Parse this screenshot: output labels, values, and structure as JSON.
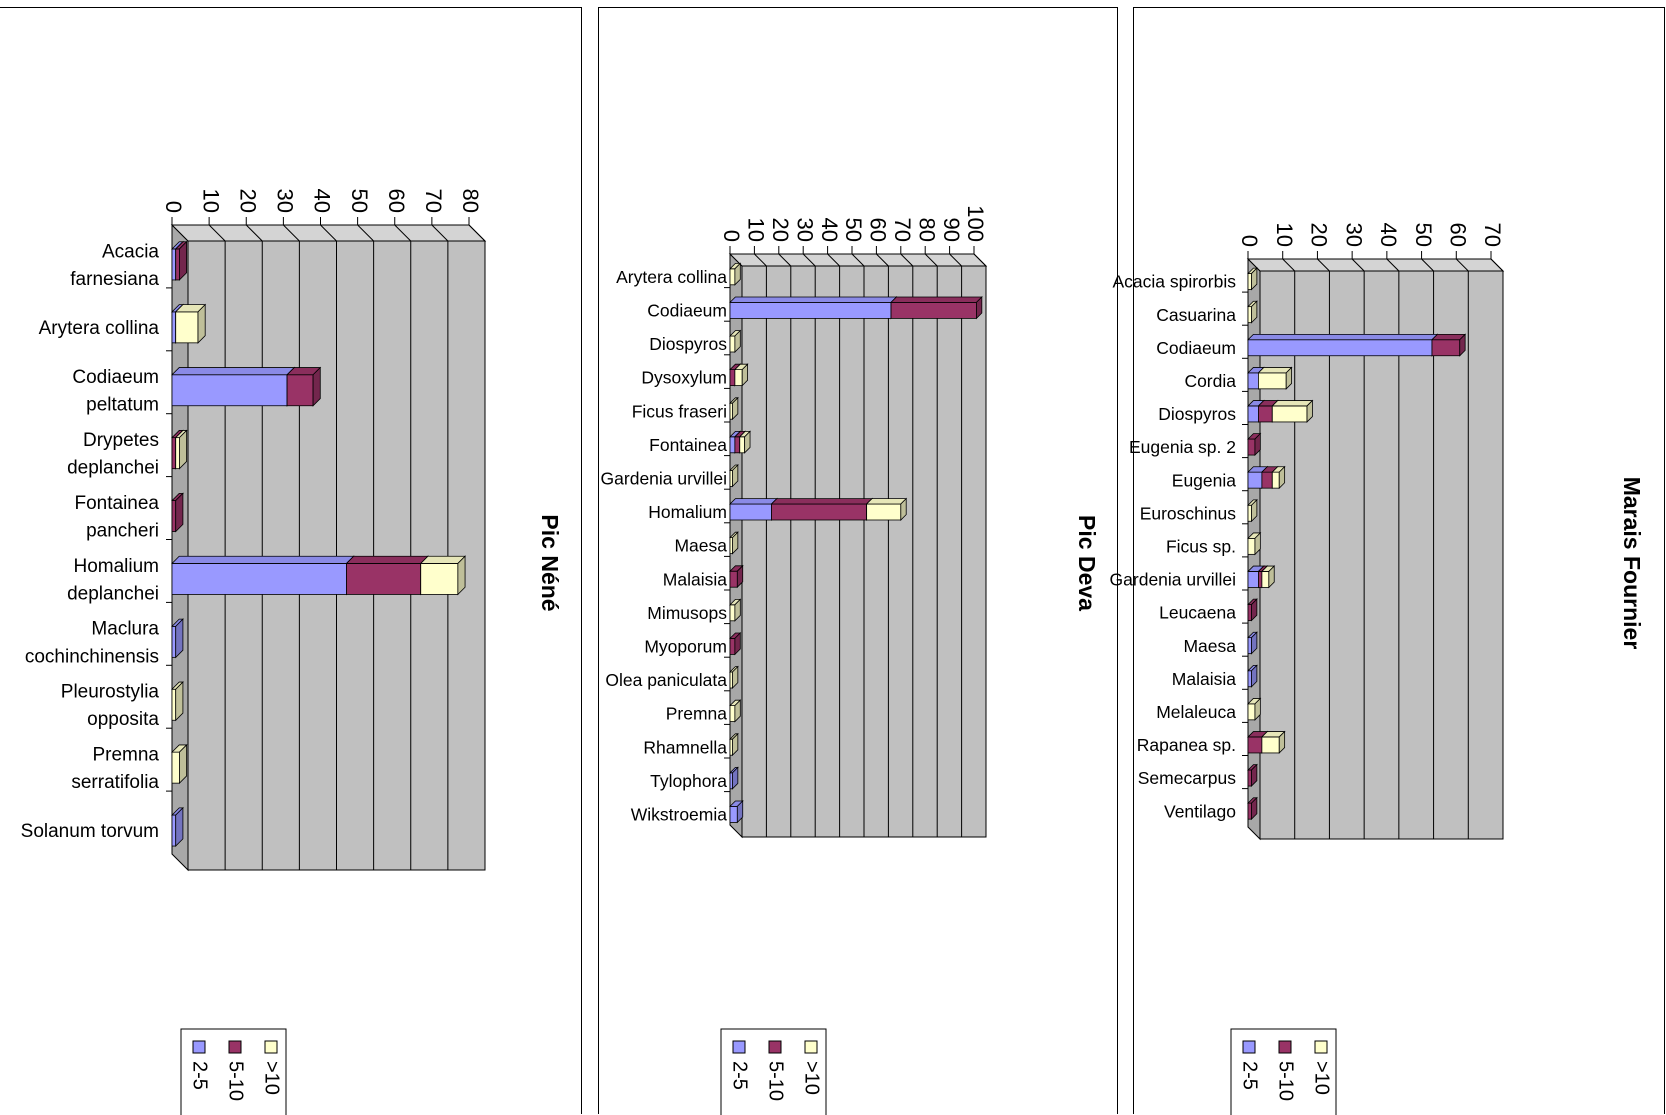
{
  "chart_data": [
    {
      "type": "bar",
      "orientation": "horizontal-stacked-3d",
      "title": "Pic Néné",
      "xlim": [
        0,
        80
      ],
      "ticks": [
        0,
        10,
        20,
        30,
        40,
        50,
        60,
        70,
        80
      ],
      "grid": true,
      "legend": "bottom",
      "categories": [
        [
          "Acacia",
          "farnesiana"
        ],
        [
          "Arytera collina"
        ],
        [
          "Codiaeum",
          "peltatum"
        ],
        [
          "Drypetes",
          "deplanchei"
        ],
        [
          "Fontainea",
          "pancheri"
        ],
        [
          "Homalium",
          "deplanchei"
        ],
        [
          "Maclura",
          "cochinchinensis"
        ],
        [
          "Pleurostylia",
          "opposita"
        ],
        [
          "Premna",
          "serratifolia"
        ],
        [
          "Solanum torvum"
        ]
      ],
      "series": [
        {
          "name": "2-5",
          "values": [
            1,
            1,
            31,
            0,
            0,
            47,
            1,
            0,
            0,
            1
          ]
        },
        {
          "name": "5-10",
          "values": [
            1,
            0,
            7,
            1,
            1,
            20,
            0,
            0,
            0,
            0
          ]
        },
        {
          "name": ">10",
          "values": [
            0,
            6,
            0,
            1,
            0,
            10,
            0,
            1,
            2,
            0
          ]
        }
      ]
    },
    {
      "type": "bar",
      "orientation": "horizontal-stacked-3d",
      "title": "Pic Deva",
      "xlim": [
        0,
        100
      ],
      "ticks": [
        0,
        10,
        20,
        30,
        40,
        50,
        60,
        70,
        80,
        90,
        100
      ],
      "grid": true,
      "legend": "bottom",
      "categories": [
        [
          "Arytera collina"
        ],
        [
          "Codiaeum"
        ],
        [
          "Diospyros"
        ],
        [
          "Dysoxylum"
        ],
        [
          "Ficus fraseri"
        ],
        [
          "Fontainea"
        ],
        [
          "Gardenia urvillei"
        ],
        [
          "Homalium"
        ],
        [
          "Maesa"
        ],
        [
          "Malaisia"
        ],
        [
          "Mimusops"
        ],
        [
          "Myoporum"
        ],
        [
          "Olea paniculata"
        ],
        [
          "Premna"
        ],
        [
          "Rhamnella"
        ],
        [
          "Tylophora"
        ],
        [
          "Wikstroemia"
        ]
      ],
      "series": [
        {
          "name": "2-5",
          "values": [
            0,
            66,
            0,
            0,
            0,
            2,
            0,
            17,
            0,
            0,
            0,
            0,
            0,
            0,
            0,
            1,
            3
          ]
        },
        {
          "name": "5-10",
          "values": [
            0,
            35,
            0,
            2,
            0,
            2,
            0,
            39,
            0,
            3,
            0,
            2,
            0,
            0,
            0,
            0,
            0
          ]
        },
        {
          "name": ">10",
          "values": [
            2,
            0,
            2,
            3,
            1,
            2,
            1,
            14,
            1,
            0,
            2,
            0,
            1,
            2,
            1,
            0,
            0
          ]
        }
      ]
    },
    {
      "type": "bar",
      "orientation": "horizontal-stacked-3d",
      "title": "Marais Fournier",
      "xlim": [
        0,
        70
      ],
      "ticks": [
        0,
        10,
        20,
        30,
        40,
        50,
        60,
        70
      ],
      "grid": true,
      "legend": "bottom",
      "categories": [
        [
          "Acacia spirorbis"
        ],
        [
          "Casuarina"
        ],
        [
          "Codiaeum"
        ],
        [
          "Cordia"
        ],
        [
          "Diospyros"
        ],
        [
          "Eugenia sp. 2"
        ],
        [
          "Eugenia"
        ],
        [
          "Euroschinus"
        ],
        [
          "Ficus sp."
        ],
        [
          "Gardenia urvillei"
        ],
        [
          "Leucaena"
        ],
        [
          "Maesa"
        ],
        [
          "Malaisia"
        ],
        [
          "Melaleuca"
        ],
        [
          "Rapanea sp."
        ],
        [
          "Semecarpus"
        ],
        [
          "Ventilago"
        ]
      ],
      "series": [
        {
          "name": "2-5",
          "values": [
            0,
            0,
            53,
            3,
            3,
            0,
            4,
            0,
            0,
            3,
            0,
            1,
            1,
            0,
            0,
            0,
            0
          ]
        },
        {
          "name": "5-10",
          "values": [
            0,
            0,
            8,
            0,
            4,
            2,
            3,
            0,
            0,
            1,
            1,
            0,
            0,
            0,
            4,
            1,
            1
          ]
        },
        {
          "name": ">10",
          "values": [
            1,
            1,
            0,
            8,
            10,
            0,
            2,
            1,
            2,
            2,
            0,
            0,
            0,
            2,
            5,
            0,
            0
          ]
        }
      ]
    }
  ],
  "colors": {
    "s1": "#9999ff",
    "s2": "#993366",
    "s3": "#ffffcc",
    "wall": "#c0c0c0",
    "wall_side": "#a8a8a8",
    "grid": "#000000"
  },
  "legend_labels": [
    "2-5",
    "5-10",
    ">10"
  ]
}
